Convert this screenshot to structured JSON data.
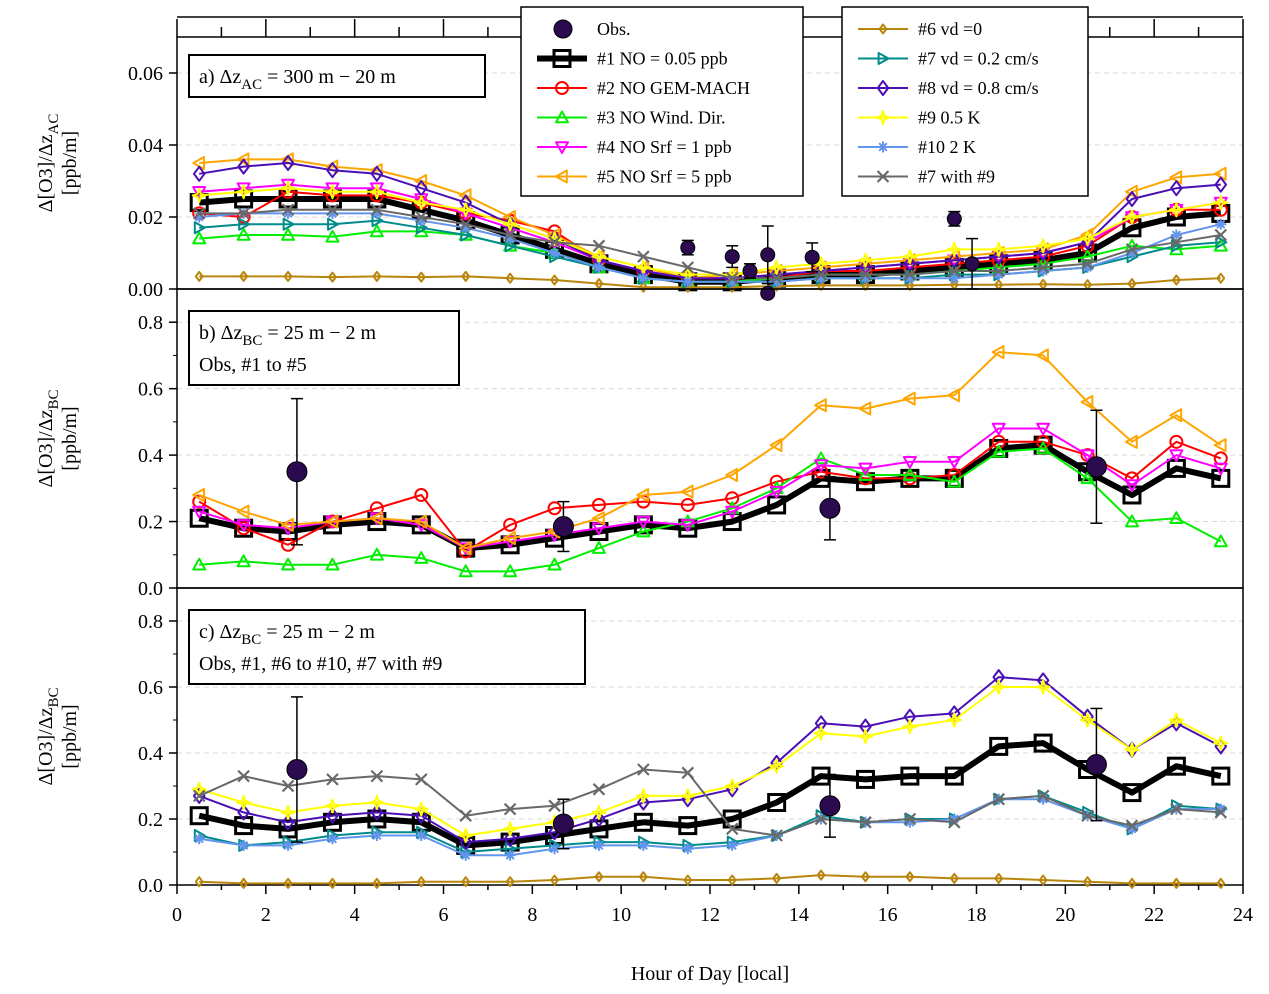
{
  "chart_data": [
    {
      "id": "a",
      "type": "line",
      "label_line1": "a) Δz",
      "label_sub": "AC",
      "label_rest": " = 300 m − 20 m",
      "label_line2": "",
      "ylabel_main": "Δ[O3]/Δz",
      "ylabel_sub": "AC",
      "ylabel_unit": "[ppb/m]",
      "ylim": [
        0,
        0.07
      ],
      "yticks": [
        0.0,
        0.02,
        0.04,
        0.06
      ],
      "yticklabels": [
        "0.00",
        "0.02",
        "0.04",
        "0.06"
      ],
      "xlim": [
        0,
        24
      ],
      "obs": {
        "x": [
          11.5,
          12.5,
          12.9,
          13.3,
          13.3,
          14.3,
          17.5,
          17.9
        ],
        "y": [
          0.0115,
          0.009,
          0.005,
          0.0095,
          -0.0012,
          0.0088,
          0.0195,
          0.007
        ],
        "err": [
          0.002,
          0.003,
          0.002,
          0.008,
          0.001,
          0.004,
          0.002,
          0.007
        ]
      },
      "series": [
        {
          "key": "s1",
          "values": [
            0.024,
            0.025,
            0.025,
            0.025,
            0.025,
            0.022,
            0.019,
            0.015,
            0.011,
            0.007,
            0.004,
            0.002,
            0.002,
            0.003,
            0.004,
            0.004,
            0.005,
            0.006,
            0.007,
            0.008,
            0.01,
            0.017,
            0.02,
            0.021
          ]
        },
        {
          "key": "s2",
          "values": [
            0.021,
            0.02,
            0.027,
            0.026,
            0.026,
            0.024,
            0.021,
            0.019,
            0.016,
            0.008,
            0.005,
            0.003,
            0.003,
            0.003,
            0.005,
            0.005,
            0.006,
            0.007,
            0.008,
            0.009,
            0.012,
            0.02,
            0.022,
            0.022
          ]
        },
        {
          "key": "s3",
          "values": [
            0.014,
            0.015,
            0.015,
            0.0145,
            0.016,
            0.016,
            0.015,
            0.012,
            0.01,
            0.006,
            0.003,
            0.002,
            0.002,
            0.003,
            0.004,
            0.004,
            0.004,
            0.005,
            0.006,
            0.007,
            0.009,
            0.012,
            0.011,
            0.012
          ]
        },
        {
          "key": "s4",
          "values": [
            0.027,
            0.028,
            0.029,
            0.028,
            0.028,
            0.025,
            0.021,
            0.017,
            0.013,
            0.008,
            0.005,
            0.003,
            0.003,
            0.004,
            0.005,
            0.006,
            0.007,
            0.008,
            0.009,
            0.01,
            0.013,
            0.02,
            0.022,
            0.024
          ]
        },
        {
          "key": "s5",
          "values": [
            0.035,
            0.036,
            0.036,
            0.034,
            0.033,
            0.03,
            0.026,
            0.02,
            0.015,
            0.009,
            0.006,
            0.003,
            0.004,
            0.005,
            0.006,
            0.007,
            0.008,
            0.009,
            0.01,
            0.011,
            0.015,
            0.027,
            0.031,
            0.032
          ]
        },
        {
          "key": "s6",
          "values": [
            0.0035,
            0.0035,
            0.0035,
            0.0033,
            0.0035,
            0.0033,
            0.0035,
            0.003,
            0.0025,
            0.0015,
            0.0005,
            0.0005,
            0.0005,
            0.0008,
            0.001,
            0.001,
            0.001,
            0.0012,
            0.0012,
            0.0013,
            0.0012,
            0.0015,
            0.0025,
            0.003
          ]
        },
        {
          "key": "s7",
          "values": [
            0.017,
            0.018,
            0.018,
            0.018,
            0.019,
            0.017,
            0.015,
            0.012,
            0.009,
            0.006,
            0.003,
            0.002,
            0.002,
            0.002,
            0.003,
            0.003,
            0.003,
            0.004,
            0.004,
            0.005,
            0.006,
            0.009,
            0.012,
            0.013
          ]
        },
        {
          "key": "s8",
          "values": [
            0.032,
            0.034,
            0.035,
            0.033,
            0.032,
            0.028,
            0.024,
            0.018,
            0.014,
            0.008,
            0.005,
            0.003,
            0.003,
            0.004,
            0.005,
            0.006,
            0.007,
            0.008,
            0.009,
            0.01,
            0.013,
            0.025,
            0.028,
            0.029
          ]
        },
        {
          "key": "s9",
          "values": [
            0.026,
            0.027,
            0.028,
            0.027,
            0.027,
            0.024,
            0.022,
            0.018,
            0.014,
            0.009,
            0.006,
            0.004,
            0.004,
            0.006,
            0.007,
            0.008,
            0.009,
            0.011,
            0.011,
            0.012,
            0.014,
            0.02,
            0.022,
            0.024
          ]
        },
        {
          "key": "s10",
          "values": [
            0.02,
            0.021,
            0.021,
            0.021,
            0.021,
            0.019,
            0.017,
            0.014,
            0.01,
            0.006,
            0.003,
            0.002,
            0.002,
            0.002,
            0.003,
            0.003,
            0.003,
            0.003,
            0.004,
            0.005,
            0.006,
            0.01,
            0.015,
            0.018
          ]
        },
        {
          "key": "s11",
          "values": [
            0.021,
            0.021,
            0.022,
            0.022,
            0.022,
            0.02,
            0.018,
            0.015,
            0.013,
            0.012,
            0.009,
            0.006,
            0.003,
            0.003,
            0.004,
            0.004,
            0.004,
            0.005,
            0.005,
            0.006,
            0.007,
            0.011,
            0.013,
            0.015
          ]
        }
      ]
    },
    {
      "id": "b",
      "type": "line",
      "label_line1": "b) Δz",
      "label_sub": "BC",
      "label_rest": " = 25 m − 2 m",
      "label_line2": "Obs, #1 to #5",
      "ylabel_main": "Δ[O3]/Δz",
      "ylabel_sub": "BC",
      "ylabel_unit": "[ppb/m]",
      "ylim": [
        0,
        0.9
      ],
      "yticks": [
        0.0,
        0.2,
        0.4,
        0.6,
        0.8
      ],
      "yticklabels": [
        "0.0",
        "0.2",
        "0.4",
        "0.6",
        "0.8"
      ],
      "xlim": [
        0,
        24
      ],
      "obs": {
        "x": [
          2.7,
          8.7,
          14.7,
          20.7
        ],
        "y": [
          0.35,
          0.185,
          0.24,
          0.365
        ],
        "err": [
          0.22,
          0.075,
          0.095,
          0.17
        ]
      },
      "series": [
        {
          "key": "s1",
          "values": [
            0.21,
            0.18,
            0.17,
            0.19,
            0.2,
            0.19,
            0.12,
            0.13,
            0.15,
            0.17,
            0.19,
            0.18,
            0.2,
            0.25,
            0.33,
            0.32,
            0.33,
            0.33,
            0.42,
            0.43,
            0.35,
            0.28,
            0.36,
            0.33
          ]
        },
        {
          "key": "s2",
          "values": [
            0.26,
            0.18,
            0.13,
            0.2,
            0.24,
            0.28,
            0.11,
            0.19,
            0.24,
            0.25,
            0.26,
            0.25,
            0.27,
            0.32,
            0.35,
            0.33,
            0.33,
            0.34,
            0.44,
            0.44,
            0.4,
            0.33,
            0.44,
            0.39
          ]
        },
        {
          "key": "s3",
          "values": [
            0.07,
            0.08,
            0.07,
            0.07,
            0.1,
            0.09,
            0.05,
            0.05,
            0.07,
            0.12,
            0.17,
            0.2,
            0.24,
            0.3,
            0.39,
            0.34,
            0.34,
            0.32,
            0.41,
            0.42,
            0.33,
            0.2,
            0.21,
            0.14
          ]
        },
        {
          "key": "s4",
          "values": [
            0.23,
            0.19,
            0.18,
            0.2,
            0.21,
            0.19,
            0.12,
            0.14,
            0.16,
            0.18,
            0.2,
            0.19,
            0.23,
            0.29,
            0.37,
            0.36,
            0.38,
            0.38,
            0.48,
            0.48,
            0.4,
            0.31,
            0.4,
            0.36
          ]
        },
        {
          "key": "s5",
          "values": [
            0.28,
            0.23,
            0.19,
            0.2,
            0.21,
            0.2,
            0.12,
            0.15,
            0.17,
            0.21,
            0.28,
            0.29,
            0.34,
            0.43,
            0.55,
            0.54,
            0.57,
            0.58,
            0.71,
            0.7,
            0.56,
            0.44,
            0.52,
            0.43
          ]
        }
      ]
    },
    {
      "id": "c",
      "type": "line",
      "label_line1": "c) Δz",
      "label_sub": "BC",
      "label_rest": " = 25 m − 2 m",
      "label_line2": "Obs, #1, #6 to #10, #7 with #9",
      "ylabel_main": "Δ[O3]/Δz",
      "ylabel_sub": "BC",
      "ylabel_unit": "[ppb/m]",
      "ylim": [
        0,
        0.9
      ],
      "yticks": [
        0.0,
        0.2,
        0.4,
        0.6,
        0.8
      ],
      "yticklabels": [
        "0.0",
        "0.2",
        "0.4",
        "0.6",
        "0.8"
      ],
      "xlim": [
        0,
        24
      ],
      "xticks": [
        0,
        2,
        4,
        6,
        8,
        10,
        12,
        14,
        16,
        18,
        20,
        22,
        24
      ],
      "xlabel": "Hour of Day [local]",
      "obs": {
        "x": [
          2.7,
          8.7,
          14.7,
          20.7
        ],
        "y": [
          0.35,
          0.185,
          0.24,
          0.365
        ],
        "err": [
          0.22,
          0.075,
          0.095,
          0.17
        ]
      },
      "series": [
        {
          "key": "s1",
          "values": [
            0.21,
            0.18,
            0.17,
            0.19,
            0.2,
            0.19,
            0.12,
            0.13,
            0.15,
            0.17,
            0.19,
            0.18,
            0.2,
            0.25,
            0.33,
            0.32,
            0.33,
            0.33,
            0.42,
            0.43,
            0.35,
            0.28,
            0.36,
            0.33
          ]
        },
        {
          "key": "s6",
          "values": [
            0.01,
            0.005,
            0.005,
            0.005,
            0.005,
            0.01,
            0.01,
            0.01,
            0.015,
            0.025,
            0.025,
            0.015,
            0.015,
            0.02,
            0.03,
            0.025,
            0.025,
            0.02,
            0.02,
            0.015,
            0.01,
            0.005,
            0.005,
            0.005
          ]
        },
        {
          "key": "s7",
          "values": [
            0.15,
            0.12,
            0.13,
            0.15,
            0.16,
            0.16,
            0.1,
            0.11,
            0.12,
            0.13,
            0.13,
            0.12,
            0.13,
            0.15,
            0.21,
            0.19,
            0.2,
            0.2,
            0.26,
            0.27,
            0.22,
            0.17,
            0.24,
            0.23
          ]
        },
        {
          "key": "s8",
          "values": [
            0.27,
            0.22,
            0.19,
            0.21,
            0.22,
            0.21,
            0.13,
            0.14,
            0.16,
            0.2,
            0.25,
            0.26,
            0.29,
            0.37,
            0.49,
            0.48,
            0.51,
            0.52,
            0.63,
            0.62,
            0.51,
            0.41,
            0.49,
            0.42
          ]
        },
        {
          "key": "s9",
          "values": [
            0.29,
            0.25,
            0.22,
            0.24,
            0.25,
            0.23,
            0.15,
            0.17,
            0.19,
            0.22,
            0.27,
            0.27,
            0.3,
            0.36,
            0.46,
            0.45,
            0.48,
            0.5,
            0.6,
            0.6,
            0.5,
            0.41,
            0.5,
            0.43
          ]
        },
        {
          "key": "s10",
          "values": [
            0.14,
            0.12,
            0.12,
            0.14,
            0.15,
            0.15,
            0.09,
            0.09,
            0.11,
            0.12,
            0.12,
            0.11,
            0.12,
            0.15,
            0.2,
            0.19,
            0.19,
            0.2,
            0.26,
            0.26,
            0.21,
            0.17,
            0.23,
            0.23
          ]
        },
        {
          "key": "s11",
          "values": [
            0.27,
            0.33,
            0.3,
            0.32,
            0.33,
            0.32,
            0.21,
            0.23,
            0.24,
            0.29,
            0.35,
            0.34,
            0.17,
            0.15,
            0.2,
            0.19,
            0.2,
            0.19,
            0.26,
            0.27,
            0.21,
            0.18,
            0.23,
            0.22
          ]
        }
      ]
    }
  ],
  "series_styles": {
    "s1": {
      "color": "#000000",
      "marker": "square",
      "width": 6,
      "size": 16
    },
    "s2": {
      "color": "#ff0000",
      "marker": "circle",
      "width": 2,
      "size": 12
    },
    "s3": {
      "color": "#00ee00",
      "marker": "triangle-up",
      "width": 2,
      "size": 12
    },
    "s4": {
      "color": "#ff00ff",
      "marker": "triangle-down",
      "width": 2,
      "size": 12
    },
    "s5": {
      "color": "#ffa500",
      "marker": "triangle-left",
      "width": 2,
      "size": 12
    },
    "s6": {
      "color": "#b8860b",
      "marker": "diamond",
      "width": 2,
      "size": 9
    },
    "s7": {
      "color": "#008b8b",
      "marker": "triangle-right",
      "width": 2,
      "size": 11
    },
    "s8": {
      "color": "#4b0fb4",
      "marker": "diamond",
      "width": 2,
      "size": 14
    },
    "s9": {
      "color": "#ffff00",
      "marker": "star",
      "width": 2,
      "size": 13
    },
    "s10": {
      "color": "#6495ed",
      "marker": "asterisk",
      "width": 2,
      "size": 11
    },
    "s11": {
      "color": "#696969",
      "marker": "cross",
      "width": 2,
      "size": 11
    }
  },
  "obs_style": {
    "color": "#3c0f55",
    "marker_fill": "#2b0a4f"
  },
  "legend_left": [
    {
      "key": "obs",
      "label": "Obs."
    },
    {
      "key": "s1",
      "label": "#1 NO = 0.05 ppb"
    },
    {
      "key": "s2",
      "label": "#2 NO GEM-MACH"
    },
    {
      "key": "s3",
      "label": "#3 NO Wind. Dir."
    },
    {
      "key": "s4",
      "label": "#4 NO Srf = 1 ppb"
    },
    {
      "key": "s5",
      "label": "#5 NO Srf = 5 ppb"
    }
  ],
  "legend_right": [
    {
      "key": "s6",
      "label": "#6 vd =0"
    },
    {
      "key": "s7",
      "label": "#7 vd = 0.2 cm/s"
    },
    {
      "key": "s8",
      "label": "#8 vd = 0.8 cm/s"
    },
    {
      "key": "s9",
      "label": "#9 0.5 K"
    },
    {
      "key": "s10",
      "label": "#10 2 K"
    },
    {
      "key": "s11",
      "label": "#7 with #9"
    }
  ]
}
